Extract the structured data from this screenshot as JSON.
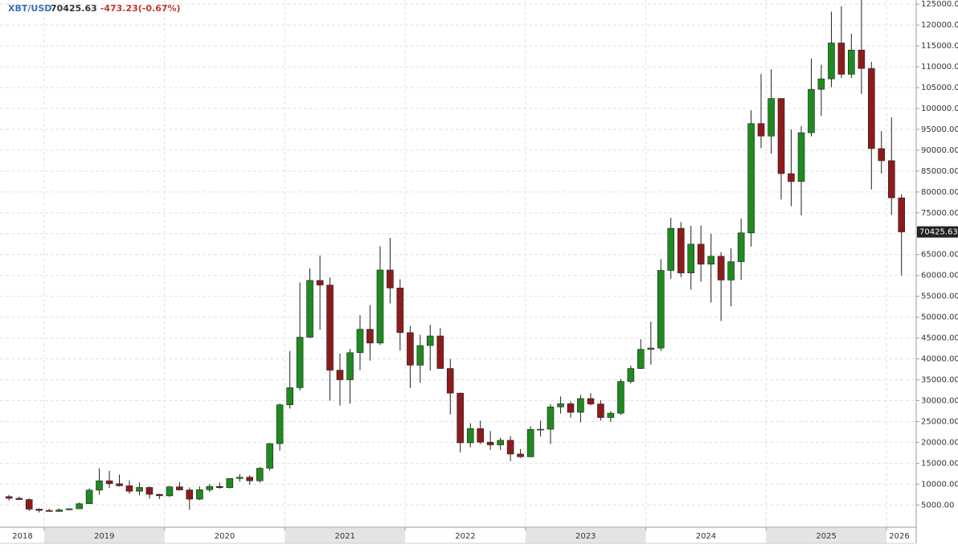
{
  "chart_data": {
    "type": "candlestick",
    "title": "XBT/USD",
    "change": "-473.23(-0.67%)",
    "up_color": "#1f8a1f",
    "down_color": "#8e1b1b",
    "grid": true,
    "xlim": [
      2018.633,
      2026.247
    ],
    "xticks": [
      {
        "value": 2018.82,
        "label": "2018"
      },
      {
        "value": 2019.5,
        "label": "2019"
      },
      {
        "value": 2020.5,
        "label": "2020"
      },
      {
        "value": 2021.5,
        "label": "2021"
      },
      {
        "value": 2022.5,
        "label": "2022"
      },
      {
        "value": 2023.5,
        "label": "2023"
      },
      {
        "value": 2024.5,
        "label": "2024"
      },
      {
        "value": 2025.5,
        "label": "2025"
      },
      {
        "value": 2026.107,
        "label": "2026"
      }
    ],
    "ylim": [
      0,
      126000
    ],
    "yticks": [
      {
        "value": 5000,
        "label": "5000.00"
      },
      {
        "value": 10000,
        "label": "10000.00"
      },
      {
        "value": 15000,
        "label": "15000.00"
      },
      {
        "value": 20000,
        "label": "20000.00"
      },
      {
        "value": 25000,
        "label": "25000.00"
      },
      {
        "value": 30000,
        "label": "30000.00"
      },
      {
        "value": 35000,
        "label": "35000.00"
      },
      {
        "value": 40000,
        "label": "40000.00"
      },
      {
        "value": 45000,
        "label": "45000.00"
      },
      {
        "value": 50000,
        "label": "50000.00"
      },
      {
        "value": 55000,
        "label": "55000.00"
      },
      {
        "value": 60000,
        "label": "60000.00"
      },
      {
        "value": 65000,
        "label": "65000.00"
      },
      {
        "value": 70000,
        "label": "70000.00"
      },
      {
        "value": 75000,
        "label": "75000.00"
      },
      {
        "value": 80000,
        "label": "80000.00"
      },
      {
        "value": 85000,
        "label": "85000.00"
      },
      {
        "value": 90000,
        "label": "90000.00"
      },
      {
        "value": 95000,
        "label": "95000.00"
      },
      {
        "value": 100000,
        "label": "100000.00"
      },
      {
        "value": 105000,
        "label": "105000.00"
      },
      {
        "value": 110000,
        "label": "110000.00"
      },
      {
        "value": 115000,
        "label": "115000.00"
      },
      {
        "value": 120000,
        "label": "120000.00"
      },
      {
        "value": 125000,
        "label": "125000.00"
      }
    ],
    "x": [
      2018.708,
      2018.792,
      2018.875,
      2018.958,
      2019.042,
      2019.125,
      2019.208,
      2019.292,
      2019.375,
      2019.458,
      2019.542,
      2019.625,
      2019.708,
      2019.792,
      2019.875,
      2019.958,
      2020.042,
      2020.125,
      2020.208,
      2020.292,
      2020.375,
      2020.458,
      2020.542,
      2020.625,
      2020.708,
      2020.792,
      2020.875,
      2020.958,
      2021.042,
      2021.125,
      2021.208,
      2021.292,
      2021.375,
      2021.458,
      2021.542,
      2021.625,
      2021.708,
      2021.792,
      2021.875,
      2021.958,
      2022.042,
      2022.125,
      2022.208,
      2022.292,
      2022.375,
      2022.458,
      2022.542,
      2022.625,
      2022.708,
      2022.792,
      2022.875,
      2022.958,
      2023.042,
      2023.125,
      2023.208,
      2023.292,
      2023.375,
      2023.458,
      2023.542,
      2023.625,
      2023.708,
      2023.792,
      2023.875,
      2023.958,
      2024.042,
      2024.125,
      2024.208,
      2024.292,
      2024.375,
      2024.458,
      2024.542,
      2024.625,
      2024.708,
      2024.792,
      2024.875,
      2024.958,
      2025.042,
      2025.125,
      2025.208,
      2025.292,
      2025.375,
      2025.458,
      2025.542,
      2025.625,
      2025.708,
      2025.792,
      2025.875,
      2025.958,
      2026.042,
      2026.125
    ],
    "open": [
      7000,
      6600,
      6300,
      4000,
      3700,
      3450,
      3850,
      4100,
      5300,
      8550,
      10800,
      10100,
      9600,
      8300,
      9200,
      7550,
      7200,
      9350,
      8600,
      6400,
      8650,
      9450,
      9150,
      11350,
      11650,
      10800,
      13800,
      19700,
      29000,
      33100,
      45200,
      58800,
      57700,
      37300,
      35000,
      41500,
      47100,
      43800,
      61300,
      57000,
      46300,
      38500,
      43200,
      45500,
      37700,
      31800,
      19900,
      23300,
      20050,
      19400,
      20500,
      17200,
      16550,
      23100,
      23150,
      28500,
      29250,
      27200,
      30500,
      29200,
      25950,
      27000,
      34600,
      37700,
      42300,
      42600,
      61200,
      71300,
      60600,
      67500,
      62700,
      64600,
      58900,
      63300,
      70200,
      96400,
      93400,
      102400,
      84400,
      82500,
      94200,
      104600,
      107100,
      115700,
      108200,
      114000,
      109600,
      90400,
      87500,
      78600
    ],
    "high": [
      7400,
      7000,
      6600,
      4200,
      4100,
      4200,
      4150,
      5600,
      9000,
      13800,
      13200,
      12300,
      10900,
      10400,
      9500,
      7700,
      9600,
      10500,
      9200,
      9450,
      10000,
      10400,
      11400,
      12450,
      12100,
      14100,
      19900,
      29300,
      41900,
      58300,
      61700,
      64800,
      59500,
      41300,
      42400,
      50500,
      52900,
      67000,
      69000,
      59100,
      47900,
      45800,
      48200,
      47400,
      40000,
      31900,
      24600,
      25200,
      22700,
      21100,
      21500,
      18400,
      23900,
      25200,
      29200,
      31000,
      29800,
      31400,
      31800,
      30100,
      27500,
      35200,
      38400,
      44700,
      48900,
      63900,
      73800,
      72800,
      71900,
      72000,
      70000,
      65600,
      66500,
      73600,
      99600,
      108300,
      109400,
      102500,
      95000,
      95800,
      112000,
      110500,
      123200,
      124500,
      117900,
      126200,
      111200,
      94600,
      97900,
      79500
    ],
    "low": [
      6100,
      6200,
      3600,
      3200,
      3400,
      3400,
      3700,
      4050,
      5300,
      7500,
      9100,
      9400,
      7700,
      7300,
      6500,
      6400,
      6900,
      8500,
      3850,
      6150,
      8100,
      8900,
      8950,
      10550,
      9850,
      10400,
      13200,
      18000,
      28100,
      32400,
      45000,
      47000,
      30000,
      28800,
      29300,
      37300,
      39600,
      43300,
      53300,
      42000,
      33000,
      34300,
      37200,
      37700,
      26700,
      17600,
      18800,
      19600,
      18200,
      18200,
      15500,
      16300,
      16500,
      21400,
      19600,
      26900,
      25900,
      24800,
      28900,
      25200,
      24900,
      26600,
      34100,
      37600,
      38600,
      41900,
      59200,
      59600,
      56600,
      58500,
      53500,
      49100,
      52600,
      58900,
      66900,
      90500,
      89200,
      78200,
      76600,
      74400,
      93300,
      98200,
      105100,
      107300,
      107300,
      103500,
      80600,
      84400,
      74500,
      60000
    ],
    "close": [
      6600,
      6300,
      4000,
      3700,
      3450,
      3850,
      4100,
      5300,
      8550,
      10800,
      10100,
      9600,
      8300,
      9200,
      7550,
      7200,
      9350,
      8600,
      6400,
      8650,
      9450,
      9150,
      11350,
      11650,
      10800,
      13800,
      19700,
      29000,
      33100,
      45200,
      58800,
      57700,
      37300,
      35000,
      41500,
      47100,
      43800,
      61300,
      57000,
      46300,
      38500,
      43200,
      45500,
      37700,
      31800,
      19900,
      23300,
      20050,
      19400,
      20500,
      17200,
      16550,
      23100,
      23150,
      28500,
      29250,
      27200,
      30500,
      29200,
      25950,
      27000,
      34600,
      37700,
      42300,
      42600,
      61200,
      71300,
      60600,
      67500,
      62700,
      64600,
      58900,
      63300,
      70200,
      96400,
      93400,
      102400,
      84400,
      82500,
      94200,
      104600,
      107100,
      115700,
      108200,
      114000,
      109600,
      90400,
      87500,
      78600,
      70425.63
    ]
  }
}
